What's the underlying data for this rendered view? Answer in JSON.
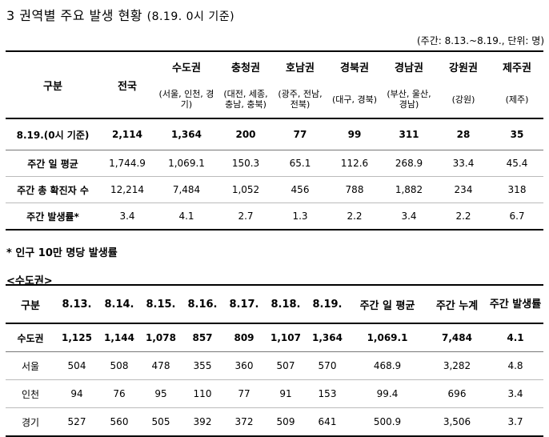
{
  "title": "3 권역별 주요 발생 현황",
  "title_sub": "(8.19. 0시 기준)",
  "unit_note": "(주간: 8.13.~8.19., 단위: 명)",
  "table1": {
    "corner": "구분",
    "col_total": "전국",
    "regions": [
      {
        "name": "수도권",
        "detail": "(서울, 인천, 경기)"
      },
      {
        "name": "충청권",
        "detail": "(대전, 세종, 충남, 충북)"
      },
      {
        "name": "호남권",
        "detail": "(광주, 전남, 전북)"
      },
      {
        "name": "경북권",
        "detail": "(대구, 경북)"
      },
      {
        "name": "경남권",
        "detail": "(부산, 울산, 경남)"
      },
      {
        "name": "강원권",
        "detail": "(강원)"
      },
      {
        "name": "제주권",
        "detail": "(제주)"
      }
    ],
    "rows": [
      {
        "label": "8.19.(0시 기준)",
        "values": [
          "2,114",
          "1,364",
          "200",
          "77",
          "99",
          "311",
          "28",
          "35"
        ]
      },
      {
        "label": "주간 일 평균",
        "values": [
          "1,744.9",
          "1,069.1",
          "150.3",
          "65.1",
          "112.6",
          "268.9",
          "33.4",
          "45.4"
        ]
      },
      {
        "label": "주간 총 확진자 수",
        "values": [
          "12,214",
          "7,484",
          "1,052",
          "456",
          "788",
          "1,882",
          "234",
          "318"
        ]
      },
      {
        "label": "주간 발생률*",
        "values": [
          "3.4",
          "4.1",
          "2.7",
          "1.3",
          "2.2",
          "3.4",
          "2.2",
          "6.7"
        ]
      }
    ]
  },
  "footnote": "* 인구 10만 명당 발생률",
  "section2_title": "<수도권>",
  "table2": {
    "headers": [
      "구분",
      "8.13.",
      "8.14.",
      "8.15.",
      "8.16.",
      "8.17.",
      "8.18.",
      "8.19.",
      "주간 일 평균",
      "주간 누계",
      "주간 발생률"
    ],
    "rows": [
      {
        "label": "수도권",
        "values": [
          "1,125",
          "1,144",
          "1,078",
          "857",
          "809",
          "1,107",
          "1,364",
          "1,069.1",
          "7,484",
          "4.1"
        ]
      },
      {
        "label": "서울",
        "values": [
          "504",
          "508",
          "478",
          "355",
          "360",
          "507",
          "570",
          "468.9",
          "3,282",
          "4.8"
        ]
      },
      {
        "label": "인천",
        "values": [
          "94",
          "76",
          "95",
          "110",
          "77",
          "91",
          "153",
          "99.4",
          "696",
          "3.4"
        ]
      },
      {
        "label": "경기",
        "values": [
          "527",
          "560",
          "505",
          "392",
          "372",
          "509",
          "641",
          "500.9",
          "3,506",
          "3.7"
        ]
      }
    ]
  }
}
